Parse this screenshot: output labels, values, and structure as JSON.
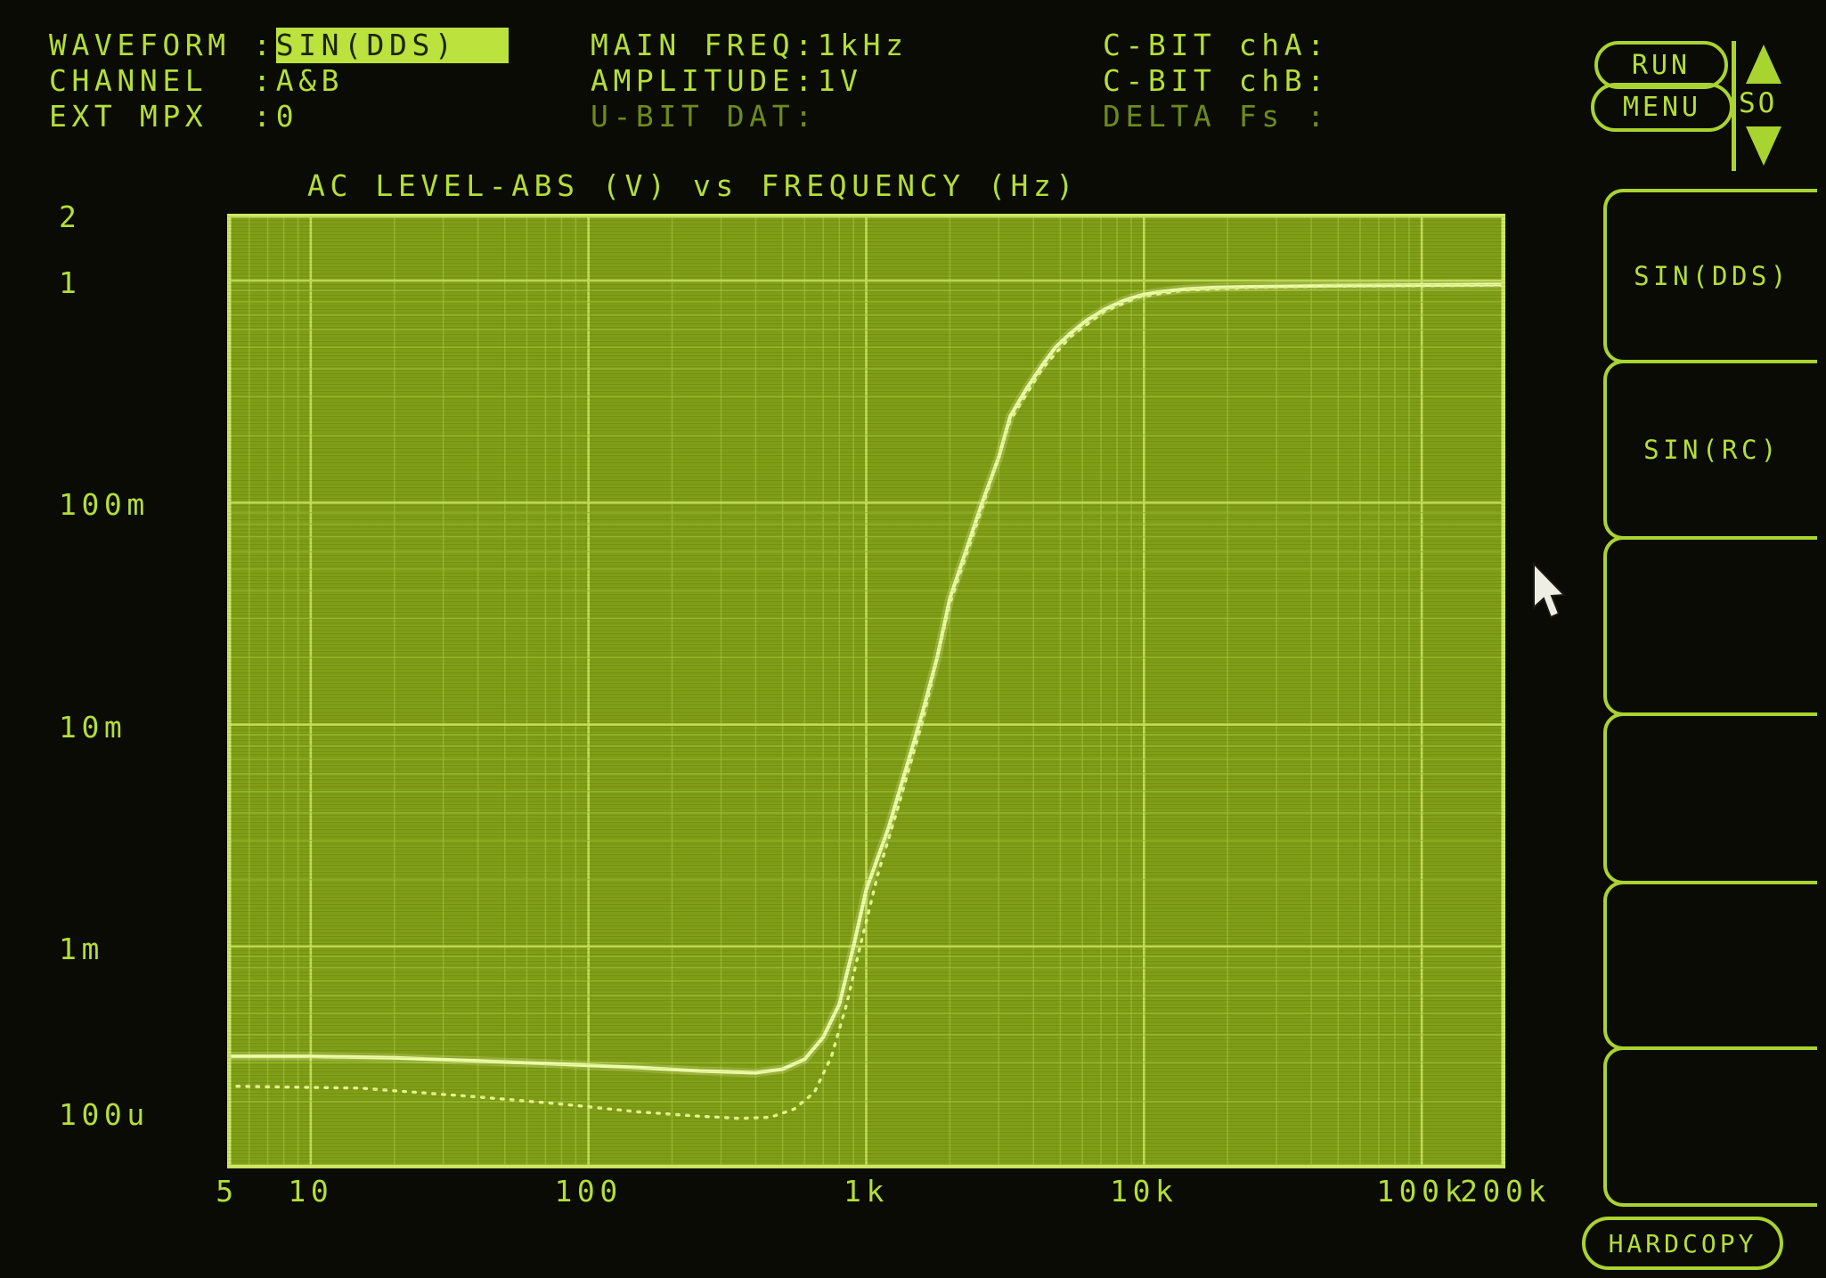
{
  "device": {
    "screen_type": "audio-analyzer-crt",
    "phosphor_color": "#b5de36",
    "plot_bg_color": "#7f9c15",
    "grid_color": "#c6e159",
    "trace_color": "#ecffa6",
    "highlight_bg": "#bce23e"
  },
  "header": {
    "col1": [
      {
        "label": "WAVEFORM :",
        "value": "SIN(DDS)"
      },
      {
        "label": "CHANNEL  :",
        "value": "A&B"
      },
      {
        "label": "EXT MPX  :",
        "value": "0"
      }
    ],
    "col2": [
      {
        "label": "MAIN FREQ:",
        "value": "1kHz"
      },
      {
        "label": "AMPLITUDE:",
        "value": "1V"
      },
      {
        "label": "U-BIT DAT:",
        "value": ""
      }
    ],
    "col3": [
      {
        "label": "C-BIT chA:",
        "value": ""
      },
      {
        "label": "C-BIT chB:",
        "value": ""
      },
      {
        "label": "DELTA Fs :",
        "value": ""
      }
    ]
  },
  "controls": {
    "run": "RUN",
    "menu": "MENU",
    "so": "SO",
    "hardcopy": "HARDCOPY"
  },
  "softkeys": [
    {
      "label": "SIN(DDS)"
    },
    {
      "label": "SIN(RC)"
    },
    {
      "label": ""
    },
    {
      "label": ""
    },
    {
      "label": ""
    },
    {
      "label": ""
    }
  ],
  "chart_data": {
    "type": "line",
    "title": "AC LEVEL-ABS (V) vs FREQUENCY (Hz)",
    "xlabel": "FREQUENCY (Hz)",
    "ylabel": "AC LEVEL-ABS (V)",
    "x_scale": "log",
    "y_scale": "log",
    "xlim": [
      5,
      200000
    ],
    "ylim": [
      0.0001,
      2
    ],
    "grid": true,
    "x_ticks": [
      {
        "v": 5,
        "label": "5"
      },
      {
        "v": 10,
        "label": "10"
      },
      {
        "v": 100,
        "label": "100"
      },
      {
        "v": 1000,
        "label": "1k"
      },
      {
        "v": 10000,
        "label": "10k"
      },
      {
        "v": 100000,
        "label": "100k"
      },
      {
        "v": 200000,
        "label": "200k"
      }
    ],
    "y_ticks": [
      {
        "v": 2,
        "label": "2"
      },
      {
        "v": 1,
        "label": "1"
      },
      {
        "v": 0.1,
        "label": "100m"
      },
      {
        "v": 0.01,
        "label": "10m"
      },
      {
        "v": 0.001,
        "label": "1m"
      },
      {
        "v": 0.0001,
        "label": "100u"
      }
    ],
    "series": [
      {
        "name": "ac-level-solid",
        "style": "solid",
        "points": [
          [
            5,
            0.00032
          ],
          [
            10,
            0.00032
          ],
          [
            20,
            0.000315
          ],
          [
            40,
            0.000305
          ],
          [
            80,
            0.000295
          ],
          [
            150,
            0.000285
          ],
          [
            250,
            0.000275
          ],
          [
            400,
            0.00027
          ],
          [
            500,
            0.00028
          ],
          [
            600,
            0.00031
          ],
          [
            700,
            0.00039
          ],
          [
            800,
            0.00055
          ],
          [
            900,
            0.001
          ],
          [
            1000,
            0.0018
          ],
          [
            1200,
            0.0034
          ],
          [
            1400,
            0.0065
          ],
          [
            1600,
            0.0115
          ],
          [
            1800,
            0.02
          ],
          [
            2000,
            0.037
          ],
          [
            2300,
            0.062
          ],
          [
            2600,
            0.098
          ],
          [
            3000,
            0.16
          ],
          [
            3300,
            0.245
          ],
          [
            3800,
            0.33
          ],
          [
            4300,
            0.415
          ],
          [
            4800,
            0.5
          ],
          [
            5400,
            0.575
          ],
          [
            6200,
            0.66
          ],
          [
            7200,
            0.74
          ],
          [
            8400,
            0.81
          ],
          [
            9600,
            0.855
          ],
          [
            11000,
            0.885
          ],
          [
            14000,
            0.915
          ],
          [
            18000,
            0.93
          ],
          [
            24000,
            0.938
          ],
          [
            35000,
            0.945
          ],
          [
            50000,
            0.95
          ],
          [
            80000,
            0.953
          ],
          [
            120000,
            0.956
          ],
          [
            200000,
            0.96
          ]
        ]
      },
      {
        "name": "ac-level-dotted",
        "style": "dotted",
        "points": [
          [
            5,
            0.000235
          ],
          [
            15,
            0.00023
          ],
          [
            40,
            0.00021
          ],
          [
            80,
            0.000195
          ],
          [
            150,
            0.00018
          ],
          [
            250,
            0.000172
          ],
          [
            350,
            0.000168
          ],
          [
            450,
            0.00017
          ],
          [
            550,
            0.000185
          ],
          [
            650,
            0.00022
          ],
          [
            750,
            0.00032
          ],
          [
            850,
            0.00055
          ],
          [
            950,
            0.001
          ],
          [
            1100,
            0.0021
          ],
          [
            1300,
            0.0042
          ],
          [
            1600,
            0.0105
          ],
          [
            2000,
            0.035
          ],
          [
            2600,
            0.093
          ],
          [
            3300,
            0.235
          ],
          [
            4300,
            0.4
          ],
          [
            5400,
            0.555
          ],
          [
            7200,
            0.725
          ],
          [
            9600,
            0.845
          ],
          [
            14000,
            0.905
          ],
          [
            24000,
            0.93
          ],
          [
            50000,
            0.944
          ],
          [
            120000,
            0.95
          ],
          [
            200000,
            0.954
          ]
        ]
      }
    ],
    "legend": null
  }
}
